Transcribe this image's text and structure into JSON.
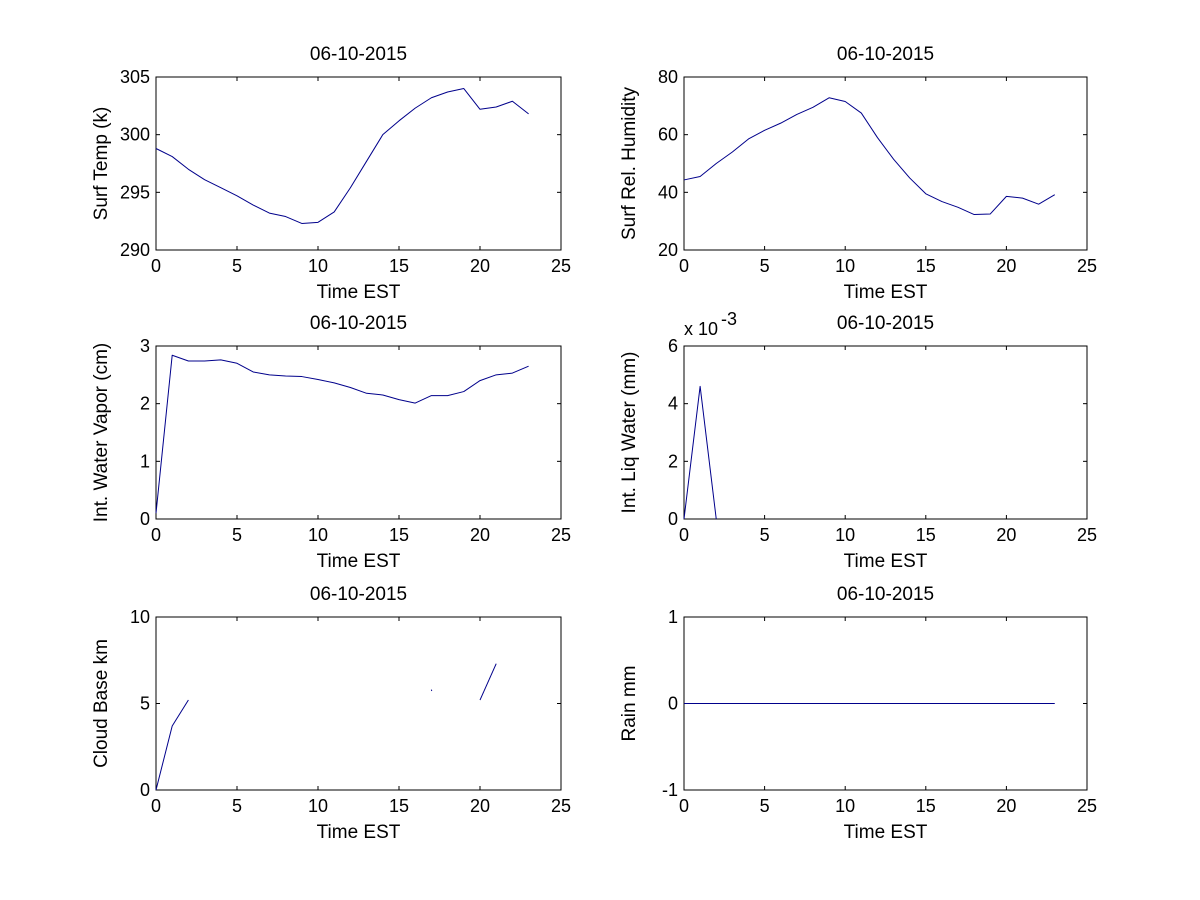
{
  "figure": {
    "background": "#ffffff",
    "line_color": "#00008b"
  },
  "chart_data": [
    {
      "type": "line",
      "title": "06-10-2015",
      "xlabel": "Time EST",
      "ylabel": "Surf Temp (k)",
      "xlim": [
        0,
        25
      ],
      "ylim": [
        290,
        305
      ],
      "xticks": [
        0,
        5,
        10,
        15,
        20,
        25
      ],
      "xtick_labels": [
        "0",
        "5",
        "10",
        "15",
        "20",
        "25"
      ],
      "yticks": [
        290,
        295,
        300,
        305
      ],
      "ytick_labels": [
        "290",
        "295",
        "300",
        "305"
      ],
      "exponent_label": "",
      "series": [
        {
          "name": "Surf Temp",
          "segments": [
            [
              [
                0,
                298.8
              ],
              [
                1,
                298.1
              ],
              [
                2,
                297.0
              ],
              [
                3,
                296.1
              ],
              [
                4,
                295.4
              ],
              [
                5,
                294.7
              ],
              [
                6,
                293.9
              ],
              [
                7,
                293.2
              ],
              [
                8,
                292.9
              ],
              [
                9,
                292.3
              ],
              [
                10,
                292.4
              ],
              [
                11,
                293.3
              ],
              [
                12,
                295.4
              ],
              [
                13,
                297.7
              ],
              [
                14,
                300.0
              ],
              [
                15,
                301.2
              ],
              [
                16,
                302.3
              ],
              [
                17,
                303.2
              ],
              [
                18,
                303.7
              ],
              [
                19,
                304.0
              ],
              [
                20,
                302.2
              ],
              [
                21,
                302.4
              ],
              [
                22,
                302.9
              ],
              [
                23,
                301.8
              ]
            ]
          ]
        }
      ]
    },
    {
      "type": "line",
      "title": "06-10-2015",
      "xlabel": "Time EST",
      "ylabel": "Surf Rel. Humidity",
      "xlim": [
        0,
        25
      ],
      "ylim": [
        20,
        80
      ],
      "xticks": [
        0,
        5,
        10,
        15,
        20,
        25
      ],
      "xtick_labels": [
        "0",
        "5",
        "10",
        "15",
        "20",
        "25"
      ],
      "yticks": [
        20,
        40,
        60,
        80
      ],
      "ytick_labels": [
        "20",
        "40",
        "60",
        "80"
      ],
      "exponent_label": "",
      "series": [
        {
          "name": "Surf Rel. Humidity",
          "segments": [
            [
              [
                0,
                44.3
              ],
              [
                1,
                45.5
              ],
              [
                2,
                50.0
              ],
              [
                3,
                54.0
              ],
              [
                4,
                58.5
              ],
              [
                5,
                61.5
              ],
              [
                6,
                64.0
              ],
              [
                7,
                67.0
              ],
              [
                8,
                69.5
              ],
              [
                9,
                72.8
              ],
              [
                10,
                71.5
              ],
              [
                11,
                67.5
              ],
              [
                12,
                59.0
              ],
              [
                13,
                51.5
              ],
              [
                14,
                45.0
              ],
              [
                15,
                39.5
              ],
              [
                16,
                36.8
              ],
              [
                17,
                34.8
              ],
              [
                18,
                32.3
              ],
              [
                19,
                32.5
              ],
              [
                20,
                38.6
              ],
              [
                21,
                38.0
              ],
              [
                22,
                35.9
              ],
              [
                23,
                39.2
              ]
            ]
          ]
        }
      ]
    },
    {
      "type": "line",
      "title": "06-10-2015",
      "xlabel": "Time EST",
      "ylabel": "Int. Water Vapor (cm)",
      "xlim": [
        0,
        25
      ],
      "ylim": [
        0,
        3
      ],
      "xticks": [
        0,
        5,
        10,
        15,
        20,
        25
      ],
      "xtick_labels": [
        "0",
        "5",
        "10",
        "15",
        "20",
        "25"
      ],
      "yticks": [
        0,
        1,
        2,
        3
      ],
      "ytick_labels": [
        "0",
        "1",
        "2",
        "3"
      ],
      "exponent_label": "",
      "series": [
        {
          "name": "Int. Water Vapor",
          "segments": [
            [
              [
                0,
                0.1
              ],
              [
                1,
                2.84
              ],
              [
                2,
                2.74
              ],
              [
                3,
                2.74
              ],
              [
                4,
                2.76
              ],
              [
                5,
                2.7
              ],
              [
                6,
                2.55
              ],
              [
                7,
                2.5
              ],
              [
                8,
                2.48
              ],
              [
                9,
                2.47
              ],
              [
                10,
                2.42
              ],
              [
                11,
                2.36
              ],
              [
                12,
                2.28
              ],
              [
                13,
                2.18
              ],
              [
                14,
                2.15
              ],
              [
                15,
                2.07
              ],
              [
                16,
                2.01
              ],
              [
                17,
                2.14
              ],
              [
                18,
                2.14
              ],
              [
                19,
                2.21
              ],
              [
                20,
                2.4
              ],
              [
                21,
                2.5
              ],
              [
                22,
                2.53
              ],
              [
                23,
                2.65
              ]
            ]
          ]
        }
      ]
    },
    {
      "type": "line",
      "title": "06-10-2015",
      "xlabel": "Time EST",
      "ylabel": "Int. Liq Water (mm)",
      "xlim": [
        0,
        25
      ],
      "ylim": [
        0,
        6
      ],
      "xticks": [
        0,
        5,
        10,
        15,
        20,
        25
      ],
      "xtick_labels": [
        "0",
        "5",
        "10",
        "15",
        "20",
        "25"
      ],
      "yticks": [
        0,
        2,
        4,
        6
      ],
      "ytick_labels": [
        "0",
        "2",
        "4",
        "6"
      ],
      "exponent_label": "x 10",
      "exponent_power": "-3",
      "series": [
        {
          "name": "Int. Liq Water",
          "segments": [
            [
              [
                0,
                0
              ],
              [
                1,
                4.6
              ],
              [
                2,
                0
              ]
            ]
          ]
        }
      ]
    },
    {
      "type": "line",
      "title": "06-10-2015",
      "xlabel": "Time EST",
      "ylabel": "Cloud Base km",
      "xlim": [
        0,
        25
      ],
      "ylim": [
        0,
        10
      ],
      "xticks": [
        0,
        5,
        10,
        15,
        20,
        25
      ],
      "xtick_labels": [
        "0",
        "5",
        "10",
        "15",
        "20",
        "25"
      ],
      "yticks": [
        0,
        5,
        10
      ],
      "ytick_labels": [
        "0",
        "5",
        "10"
      ],
      "exponent_label": "",
      "series": [
        {
          "name": "Cloud Base",
          "segments": [
            [
              [
                0,
                0
              ],
              [
                1,
                3.7
              ],
              [
                2,
                5.2
              ]
            ],
            [
              [
                17,
                5.8
              ],
              [
                17.02,
                5.72
              ]
            ],
            [
              [
                20,
                5.2
              ],
              [
                21,
                7.3
              ]
            ]
          ]
        }
      ]
    },
    {
      "type": "line",
      "title": "06-10-2015",
      "xlabel": "Time EST",
      "ylabel": "Rain mm",
      "xlim": [
        0,
        25
      ],
      "ylim": [
        -1,
        1
      ],
      "xticks": [
        0,
        5,
        10,
        15,
        20,
        25
      ],
      "xtick_labels": [
        "0",
        "5",
        "10",
        "15",
        "20",
        "25"
      ],
      "yticks": [
        -1,
        0,
        1
      ],
      "ytick_labels": [
        "-1",
        "0",
        "1"
      ],
      "exponent_label": "",
      "series": [
        {
          "name": "Rain",
          "segments": [
            [
              [
                0,
                0
              ],
              [
                23,
                0
              ]
            ]
          ]
        }
      ]
    }
  ]
}
